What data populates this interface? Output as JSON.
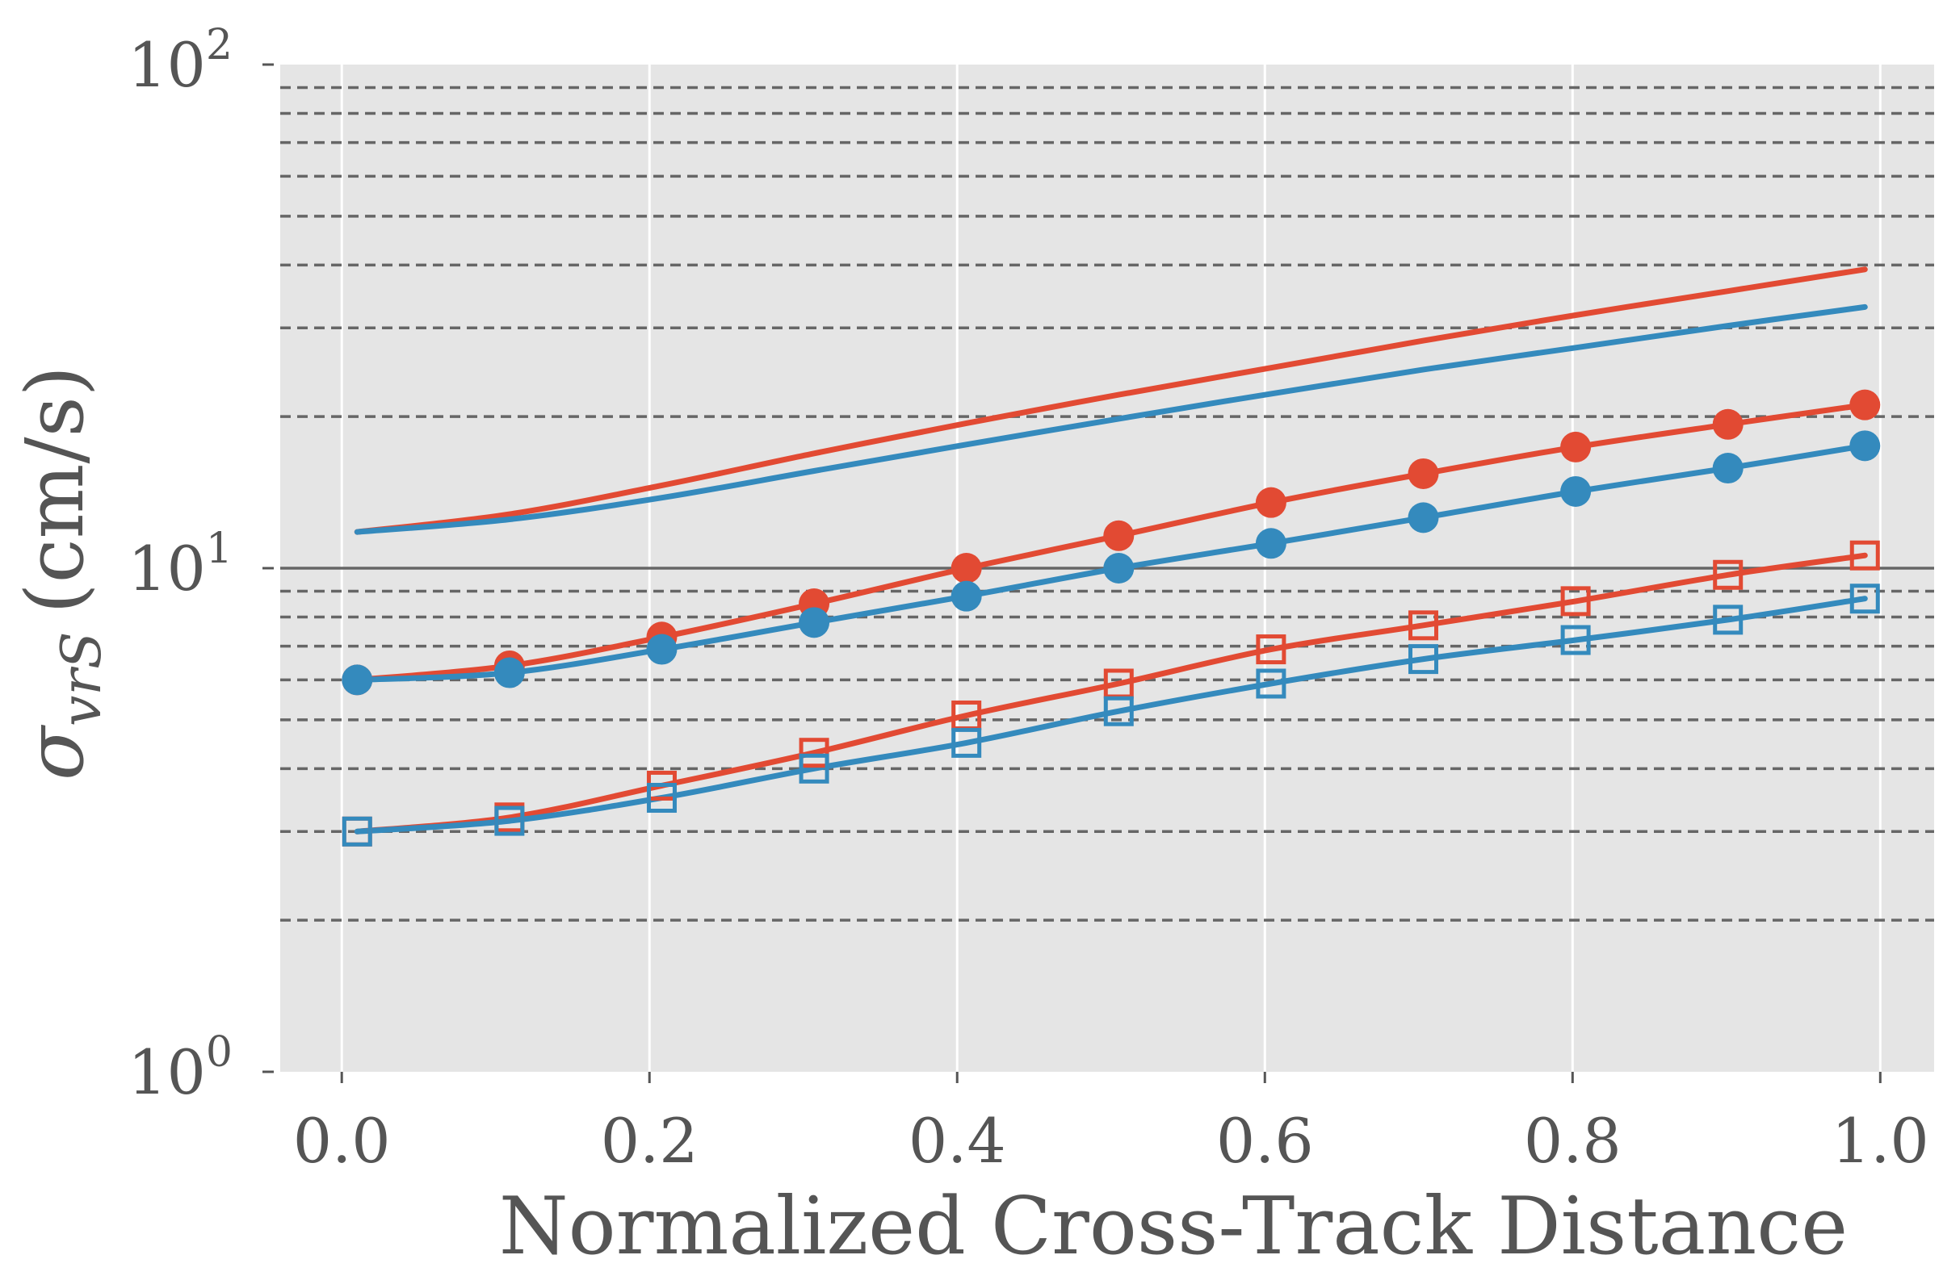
{
  "chart_data": {
    "type": "line",
    "title": "",
    "xlabel": "Normalized Cross-Track Distance",
    "ylabel": {
      "base": "σ",
      "subscript": "vrS",
      "units": "(cm/s)"
    },
    "xlim": [
      -0.04,
      1.035
    ],
    "ylim": [
      1,
      100
    ],
    "yscale": "log",
    "grid": true,
    "x_ticks": [
      {
        "value": 0.0,
        "label": "0.0"
      },
      {
        "value": 0.2,
        "label": "0.2"
      },
      {
        "value": 0.4,
        "label": "0.4"
      },
      {
        "value": 0.6,
        "label": "0.6"
      },
      {
        "value": 0.8,
        "label": "0.8"
      },
      {
        "value": 1.0,
        "label": "1.0"
      }
    ],
    "y_ticks": [
      {
        "value": 1,
        "base": "10",
        "exp": "0"
      },
      {
        "value": 10,
        "base": "10",
        "exp": "1"
      },
      {
        "value": 100,
        "base": "10",
        "exp": "2"
      }
    ],
    "reference_lines": [
      2,
      3,
      4,
      5,
      6,
      7,
      8,
      9,
      20,
      30,
      40,
      50,
      60,
      70,
      80,
      90
    ],
    "solid_reference_line": 10,
    "colors": {
      "red": "#e24a33",
      "blue": "#348abd",
      "background": "#e5e5e5",
      "ref": "#666666",
      "grid": "#ffffff"
    },
    "x": [
      0.01,
      0.109,
      0.208,
      0.307,
      0.406,
      0.505,
      0.604,
      0.703,
      0.802,
      0.901,
      0.99
    ],
    "series": [
      {
        "name": "red-solid",
        "color": "red",
        "marker": "none",
        "values": [
          11.8,
          12.8,
          14.6,
          16.9,
          19.4,
          22.1,
          25.0,
          28.3,
          31.8,
          35.5,
          39.2
        ]
      },
      {
        "name": "blue-solid",
        "color": "blue",
        "marker": "none",
        "values": [
          11.8,
          12.5,
          13.8,
          15.6,
          17.6,
          19.8,
          22.2,
          24.8,
          27.4,
          30.3,
          33.0
        ]
      },
      {
        "name": "red-circle",
        "color": "red",
        "marker": "circle",
        "values": [
          6.0,
          6.4,
          7.3,
          8.5,
          10.0,
          11.6,
          13.5,
          15.4,
          17.4,
          19.3,
          21.1
        ]
      },
      {
        "name": "blue-circle",
        "color": "blue",
        "marker": "circle",
        "values": [
          6.0,
          6.2,
          6.9,
          7.8,
          8.8,
          10.0,
          11.2,
          12.6,
          14.2,
          15.8,
          17.5
        ]
      },
      {
        "name": "red-square",
        "color": "red",
        "marker": "square",
        "values": [
          3.0,
          3.2,
          3.7,
          4.3,
          5.1,
          5.9,
          6.9,
          7.7,
          8.6,
          9.7,
          10.6
        ]
      },
      {
        "name": "blue-square",
        "color": "blue",
        "marker": "square",
        "values": [
          3.0,
          3.15,
          3.5,
          4.0,
          4.5,
          5.2,
          5.9,
          6.6,
          7.2,
          7.9,
          8.7
        ]
      }
    ]
  }
}
